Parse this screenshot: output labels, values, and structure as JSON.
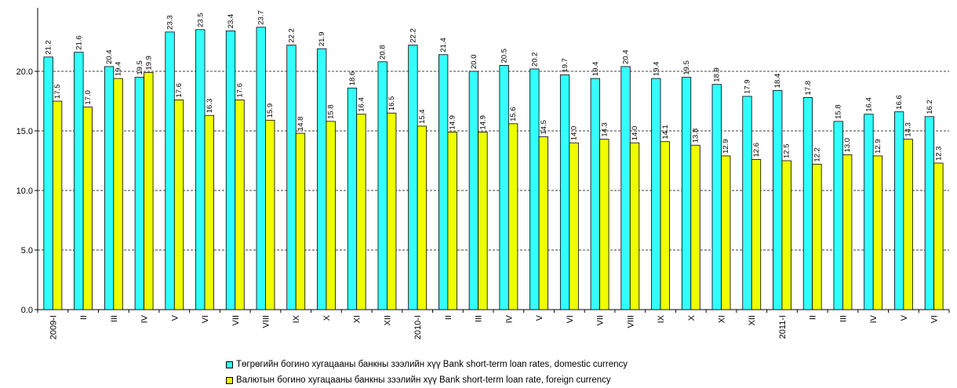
{
  "chart_data": {
    "type": "bar",
    "categories": [
      "2009-I",
      "II",
      "III",
      "IV",
      "V",
      "VI",
      "VII",
      "VIII",
      "IX",
      "X",
      "XI",
      "XII",
      "2010-I",
      "II",
      "III",
      "IV",
      "V",
      "VI",
      "VII",
      "VIII",
      "IX",
      "X",
      "XI",
      "XII",
      "2011-I",
      "II",
      "III",
      "IV",
      "V",
      "VI"
    ],
    "series": [
      {
        "name": "Төгрөгийн богино хугацааны банкны зээлийн хүү Bank short-term loan rates, domestic currency",
        "color": "#33ffff",
        "values": [
          21.2,
          21.6,
          20.4,
          19.5,
          23.3,
          23.5,
          23.4,
          23.7,
          22.2,
          21.9,
          18.6,
          20.8,
          22.2,
          21.4,
          20.0,
          20.5,
          20.2,
          19.7,
          19.4,
          20.4,
          19.4,
          19.5,
          18.9,
          17.9,
          18.4,
          17.8,
          15.8,
          16.4,
          16.6,
          16.2
        ],
        "labels": [
          "21.2",
          "21.6",
          "20.4",
          "19.5",
          "23.3",
          "23.5",
          "23.4",
          "23.7",
          "22.2",
          "21.9",
          "18.6",
          "20.8",
          "22.2",
          "21.4",
          "20.0",
          "20.5",
          "20.2",
          "19.7",
          "19.4",
          "20.4",
          "19.4",
          "19.5",
          "18.9",
          "17.9",
          "18.4",
          "17.8",
          "15.8",
          "16.4",
          "16.6",
          "16.2"
        ]
      },
      {
        "name": "Валютын богино хугацааны банкны зээлийн хүү Bank short-term loan rate, foreign currency",
        "color": "#eeff00",
        "values": [
          17.5,
          17.0,
          19.4,
          19.9,
          17.6,
          16.3,
          17.6,
          15.9,
          14.8,
          15.8,
          16.4,
          16.5,
          15.4,
          14.9,
          14.9,
          15.6,
          14.5,
          14.0,
          14.3,
          14.0,
          14.1,
          13.8,
          12.9,
          12.6,
          12.5,
          12.2,
          13.0,
          12.9,
          14.3,
          12.3
        ],
        "labels": [
          "17.5",
          "17.0",
          "19.4",
          "19.9",
          "17.6",
          "16.3",
          "17.6",
          "15.9",
          "14.8",
          "15.8",
          "16.4",
          "16.5",
          "15.4",
          "14.9",
          "14.9",
          "15.6",
          "14.5",
          "14.0",
          "14.3",
          "14.0",
          "14.1",
          "13.8",
          "12.9",
          "12.6",
          "12.5",
          "12.2",
          "13.0",
          "12.9",
          "14.3",
          "12.3"
        ]
      }
    ],
    "yticks": [
      "0.0",
      "5.0",
      "10.0",
      "15.0",
      "20.0"
    ],
    "ylim": [
      0,
      25
    ],
    "grid": "dashed horizontal",
    "legend_position": "bottom"
  }
}
